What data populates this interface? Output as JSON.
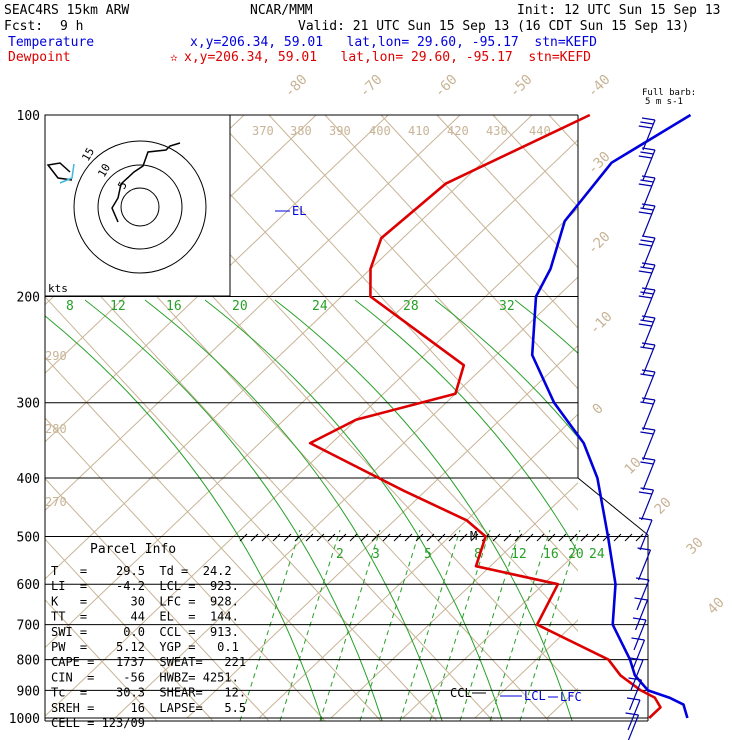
{
  "header": {
    "model": "SEAC4RS 15km ARW",
    "org": "NCAR/MMM",
    "init": "Init: 12 UTC Sun 15 Sep 13",
    "fcst_label": "Fcst:",
    "fcst_value": "9 h",
    "valid": "Valid: 21 UTC Sun 15 Sep 13 (16 CDT Sun 15 Sep 13)",
    "temp_label": "Temperature",
    "dew_label": "Dewpoint",
    "temp_info": "x,y=206.34, 59.01   lat,lon= 29.60, -95.17  stn=KEFD",
    "dew_info": "x,y=206.34, 59.01   lat,lon= 29.60, -95.17  stn=KEFD",
    "dew_star": "✫"
  },
  "colors": {
    "temperature": "#0000dd",
    "dewpoint": "#dd0000",
    "theta": "#c8b496",
    "theta_e": "#28a028",
    "mixing": "#28a028",
    "isotherm": "#c8b496"
  },
  "hodograph": {
    "units": "kts",
    "ring_labels": [
      "5",
      "10",
      "15"
    ]
  },
  "wind_barb_label": [
    "Full barb:",
    "5 m s-1"
  ],
  "chart_data": {
    "type": "line",
    "chart_kind": "skew-T log-P sounding",
    "y_axis": {
      "scale": "log",
      "unit": "hPa",
      "ylim": [
        1000,
        100
      ],
      "ticks": [
        100,
        200,
        300,
        400,
        500,
        600,
        700,
        800,
        900,
        1000
      ]
    },
    "isotherm_labels": [
      "-80",
      "-70",
      "-60",
      "-50",
      "-40",
      "-30",
      "-20",
      "-10",
      "0",
      "10",
      "20",
      "30",
      "40"
    ],
    "theta_labels": [
      "370",
      "380",
      "390",
      "400",
      "410",
      "420",
      "430",
      "440"
    ],
    "theta_side_labels": [
      "290",
      "280",
      "270"
    ],
    "theta_e_labels": [
      "8",
      "12",
      "16",
      "20",
      "24",
      "28",
      "32"
    ],
    "mixing_ratio_labels": [
      "2",
      "3",
      "5",
      "8",
      "12",
      "16",
      "20",
      "24"
    ],
    "annotations": [
      "EL",
      "CCL",
      "LCL",
      "LFC",
      "M"
    ],
    "series": [
      {
        "name": "Temperature",
        "points": [
          [
            100,
            -58
          ],
          [
            120,
            -62
          ],
          [
            150,
            -60
          ],
          [
            180,
            -55
          ],
          [
            200,
            -53
          ],
          [
            250,
            -45
          ],
          [
            300,
            -35
          ],
          [
            350,
            -25
          ],
          [
            400,
            -18
          ],
          [
            500,
            -8
          ],
          [
            600,
            0
          ],
          [
            700,
            5.5
          ],
          [
            800,
            13
          ],
          [
            850,
            16
          ],
          [
            900,
            20
          ],
          [
            925,
            24
          ],
          [
            950,
            27
          ],
          [
            1000,
            29.5
          ]
        ]
      },
      {
        "name": "Dewpoint",
        "points": [
          [
            100,
            -72
          ],
          [
            130,
            -82
          ],
          [
            160,
            -83
          ],
          [
            180,
            -80
          ],
          [
            200,
            -76
          ],
          [
            260,
            -53
          ],
          [
            290,
            -50
          ],
          [
            320,
            -60
          ],
          [
            350,
            -63
          ],
          [
            420,
            -43
          ],
          [
            470,
            -30
          ],
          [
            500,
            -25
          ],
          [
            560,
            -22
          ],
          [
            600,
            -8
          ],
          [
            700,
            -5
          ],
          [
            800,
            10
          ],
          [
            850,
            14
          ],
          [
            900,
            19
          ],
          [
            925,
            22
          ],
          [
            960,
            24.2
          ],
          [
            1000,
            24.2
          ]
        ]
      }
    ],
    "wind_barbs_present": true
  },
  "parcel_info": {
    "title": "Parcel Info",
    "rows": [
      "T   =    29.5  Td =  24.2",
      "LI  =    -4.2  LCL =  923.",
      "K   =      30  LFC =  928.",
      "TT  =      44  EL  =  144.",
      "SWI =     0.0  CCL =  913.",
      "PW  =    5.12  YGP =   0.1",
      "CAPE =   1737  SWEAT=   221",
      "CIN  =    -56  HWBZ= 4251.",
      "Tc  =    30.3  SHEAR=   12.",
      "SREH =     16  LAPSE=   5.5",
      "CELL = 123/09"
    ]
  }
}
